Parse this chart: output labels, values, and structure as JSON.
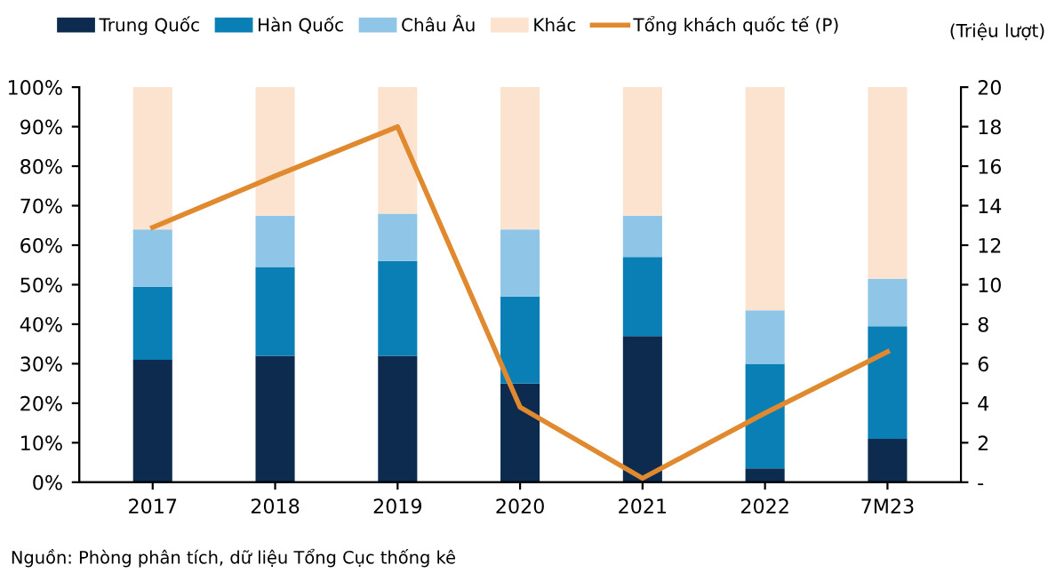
{
  "chart_data": {
    "type": "bar",
    "stacked": true,
    "categories": [
      "2017",
      "2018",
      "2019",
      "2020",
      "2021",
      "2022",
      "7M23"
    ],
    "series": [
      {
        "name": "Trung Quốc",
        "color": "#0d2b4e",
        "values": [
          31,
          32,
          32,
          25,
          37,
          3.5,
          11
        ]
      },
      {
        "name": "Hàn Quốc",
        "color": "#0a7fb5",
        "values": [
          18.5,
          22.5,
          24,
          22,
          20,
          26.5,
          28.5
        ]
      },
      {
        "name": "Châu Âu",
        "color": "#8fc6e8",
        "values": [
          14.5,
          13,
          12,
          17,
          10.5,
          13.5,
          12
        ]
      },
      {
        "name": "Khác",
        "color": "#fce3cf",
        "values": [
          36,
          32.5,
          32,
          36,
          32.5,
          56.5,
          48.5
        ]
      },
      {
        "name": "Tổng khách quốc tế (P)",
        "type": "line",
        "axis": "y2",
        "color": "#e0892f",
        "values": [
          12.9,
          15.5,
          18.0,
          3.8,
          0.2,
          3.5,
          6.6
        ]
      }
    ],
    "ylim": [
      0,
      100
    ],
    "yticks": [
      {
        "value": 0,
        "label": "0%"
      },
      {
        "value": 10,
        "label": "10%"
      },
      {
        "value": 20,
        "label": "20%"
      },
      {
        "value": 30,
        "label": "30%"
      },
      {
        "value": 40,
        "label": "40%"
      },
      {
        "value": 50,
        "label": "50%"
      },
      {
        "value": 60,
        "label": "60%"
      },
      {
        "value": 70,
        "label": "70%"
      },
      {
        "value": 80,
        "label": "80%"
      },
      {
        "value": 90,
        "label": "90%"
      },
      {
        "value": 100,
        "label": "100%"
      }
    ],
    "y2lim": [
      0,
      20
    ],
    "y2ticks": [
      {
        "value": 0,
        "label": "-"
      },
      2,
      4,
      6,
      8,
      10,
      12,
      14,
      16,
      18,
      20
    ],
    "y2label": "(Triệu lượt)",
    "legend": "top",
    "grid": false,
    "marker": "none",
    "line_style": "solid",
    "annotations": [
      "Nguồn: Phòng phân tích, dữ liệu Tổng Cục thống kê"
    ]
  }
}
